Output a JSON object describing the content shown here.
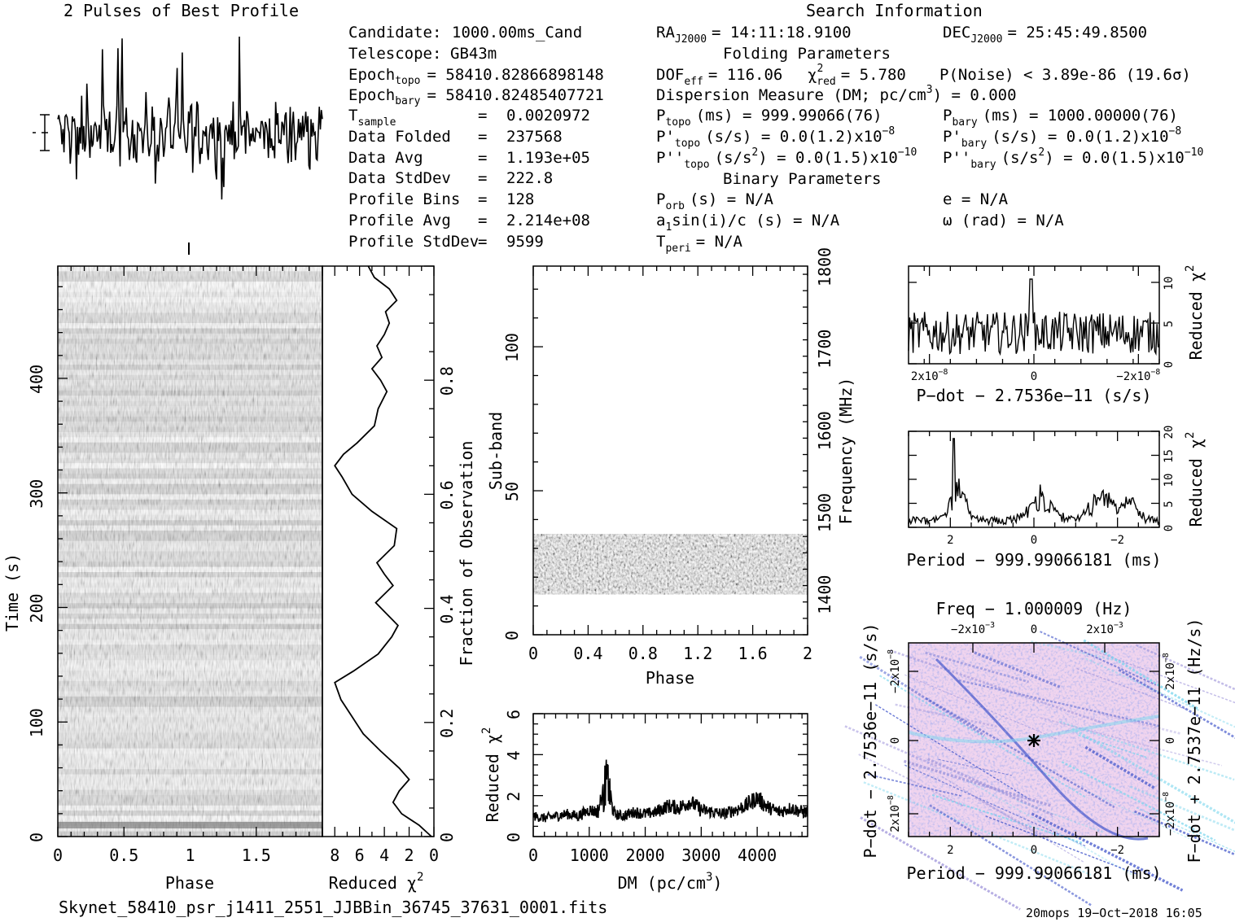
{
  "header": {
    "profile_title": "2 Pulses of Best Profile",
    "search_title": "Search Information",
    "folding_title": "Folding Parameters",
    "binary_title": "Binary Parameters"
  },
  "info": {
    "candidate": {
      "label": "Candidate:",
      "value": "1000.00ms_Cand"
    },
    "telescope": {
      "label": "Telescope:",
      "value": "GB43m"
    },
    "epoch_topo": {
      "label": "Epoch",
      "sub": "topo",
      "value": "= 58410.82866898148"
    },
    "epoch_bary": {
      "label": "Epoch",
      "sub": "bary",
      "value": "= 58410.82485407721"
    },
    "t_sample": {
      "label": "T",
      "sub": "sample",
      "value": "0.0020972"
    },
    "data_folded": {
      "label": "Data Folded",
      "value": "237568"
    },
    "data_avg": {
      "label": "Data Avg",
      "value": "1.193e+05"
    },
    "data_stddev": {
      "label": "Data StdDev",
      "value": "222.8"
    },
    "profile_bins": {
      "label": "Profile Bins",
      "value": "128"
    },
    "profile_avg": {
      "label": "Profile Avg",
      "value": "2.214e+08"
    },
    "profile_stddev": {
      "label": "Profile StdDev",
      "value": "9599"
    },
    "eq": "="
  },
  "search": {
    "ra": {
      "label": "RA",
      "sub": "J2000",
      "value": "= 14:11:18.9100"
    },
    "dec": {
      "label": "DEC",
      "sub": "J2000",
      "value": "= 25:45:49.8500"
    },
    "dof": {
      "label": "DOF",
      "sub": "eff",
      "value": "= 116.06"
    },
    "chi": {
      "label": "χ",
      "sup": "2",
      "sub": "red",
      "value": "= 5.780"
    },
    "pnoise": "P(Noise) < 3.89e-86  (19.6σ)",
    "dm_label": "Dispersion Measure (DM; pc/cm",
    "dm_sup": "3",
    "dm_value": ") = 0.000",
    "p_topo": {
      "label": "P",
      "sub": "topo",
      "value": "(ms) =  999.99066(76)"
    },
    "p_bary": {
      "label": "P",
      "sub": "bary",
      "value": "(ms) =  1000.00000(76)"
    },
    "pd_topo": {
      "label": "P'",
      "sub": "topo",
      "value": "(s/s) = 0.0(1.2)x10",
      "sup": "−8"
    },
    "pd_bary": {
      "label": "P'",
      "sub": "bary",
      "value": "(s/s) = 0.0(1.2)x10",
      "sup": "−8"
    },
    "pdd_topo": {
      "label": "P''",
      "sub": "topo",
      "value": "(s/s",
      "sup2": "2",
      "value2": ") = 0.0(1.5)x10",
      "sup": "−10"
    },
    "pdd_bary": {
      "label": "P''",
      "sub": "bary",
      "value": "(s/s",
      "sup2": "2",
      "value2": ") = 0.0(1.5)x10",
      "sup": "−10"
    },
    "p_orb": {
      "label": "P",
      "sub": "orb",
      "value": "(s) = N/A"
    },
    "a1": {
      "label": "a",
      "sub": "1",
      "value": "sin(i)/c (s) = N/A"
    },
    "t_peri": {
      "label": "T",
      "sub": "peri",
      "value": "= N/A"
    },
    "e": "e = N/A",
    "omega": "ω (rad) = N/A"
  },
  "footer": {
    "filename": "Skynet_58410_psr_j1411_2551_JJBBin_36745_37631_0001.fits",
    "stamp": "20mops 19−Oct−2018 16:05"
  },
  "colors": {
    "ink": "#000000",
    "grey_bg": "#c8c8c8",
    "pdot_map": "#f0d4ee",
    "pdot_map_dark": "#3a4fc8",
    "pdot_map_light": "#7fd8ee"
  },
  "chart_data": [
    {
      "name": "pulse-profile",
      "type": "line",
      "title": "2 Pulses of Best Profile",
      "x_range": [
        0,
        2
      ],
      "note": "noisy, no significant pulse"
    },
    {
      "name": "time-vs-phase",
      "type": "heatmap",
      "xlabel": "Phase",
      "ylabel": "Time (s)",
      "x_ticks": [
        "0",
        "0.5",
        "1",
        "1.5"
      ],
      "y_ticks": [
        "0",
        "100",
        "200",
        "300",
        "400"
      ],
      "xlim": [
        0,
        2
      ],
      "ylim": [
        0,
        498
      ]
    },
    {
      "name": "reduced-chi2-vs-time",
      "type": "line",
      "xlabel": "Reduced χ",
      "xlabel_sup": "2",
      "ylabel": "Fraction of Observation",
      "x_ticks": [
        "8",
        "6",
        "4",
        "2",
        "0"
      ],
      "y_ticks": [
        "0",
        "0.2",
        "0.4",
        "0.6",
        "0.8"
      ],
      "xlim": [
        9,
        0
      ],
      "ylim": [
        0,
        1
      ],
      "points": [
        [
          0.0,
          0.2
        ],
        [
          0.02,
          1.2
        ],
        [
          0.04,
          2.6
        ],
        [
          0.06,
          3.3
        ],
        [
          0.08,
          2.8
        ],
        [
          0.1,
          2.0
        ],
        [
          0.12,
          2.8
        ],
        [
          0.15,
          4.3
        ],
        [
          0.18,
          5.7
        ],
        [
          0.21,
          6.6
        ],
        [
          0.24,
          7.5
        ],
        [
          0.27,
          8.0
        ],
        [
          0.29,
          6.5
        ],
        [
          0.32,
          4.5
        ],
        [
          0.35,
          3.4
        ],
        [
          0.37,
          2.9
        ],
        [
          0.39,
          3.8
        ],
        [
          0.41,
          4.7
        ],
        [
          0.44,
          3.3
        ],
        [
          0.46,
          4.0
        ],
        [
          0.48,
          4.6
        ],
        [
          0.51,
          3.2
        ],
        [
          0.54,
          3.0
        ],
        [
          0.57,
          5.0
        ],
        [
          0.6,
          6.6
        ],
        [
          0.63,
          7.4
        ],
        [
          0.65,
          8.0
        ],
        [
          0.67,
          7.3
        ],
        [
          0.69,
          6.2
        ],
        [
          0.72,
          4.8
        ],
        [
          0.75,
          4.5
        ],
        [
          0.78,
          3.8
        ],
        [
          0.8,
          4.3
        ],
        [
          0.82,
          5.0
        ],
        [
          0.84,
          4.2
        ],
        [
          0.86,
          4.6
        ],
        [
          0.88,
          4.0
        ],
        [
          0.9,
          3.6
        ],
        [
          0.92,
          3.9
        ],
        [
          0.94,
          3.0
        ],
        [
          0.96,
          3.6
        ],
        [
          0.98,
          4.8
        ],
        [
          1.0,
          5.3
        ]
      ]
    },
    {
      "name": "subband-vs-phase",
      "type": "heatmap",
      "xlabel": "Phase",
      "ylabel": "Sub-band",
      "y2label": "Frequency (MHz)",
      "x_ticks": [
        "0",
        "0.4",
        "0.8",
        "1.2",
        "1.6",
        "2"
      ],
      "y_ticks": [
        "0",
        "50",
        "100"
      ],
      "y2_ticks": [
        "1400",
        "1500",
        "1600",
        "1700",
        "1800"
      ],
      "xlim": [
        0,
        2
      ],
      "ylim": [
        0,
        128
      ],
      "y2lim": [
        1350,
        1800
      ],
      "active_subbands": [
        14,
        35
      ]
    },
    {
      "name": "reduced-chi2-vs-dm",
      "type": "line",
      "xlabel": "DM (pc/cm",
      "xlabel_sup": "3",
      "xlabel_end": ")",
      "ylabel": "Reduced χ",
      "ylabel_sup": "2",
      "x_ticks": [
        "0",
        "1000",
        "2000",
        "3000",
        "4000"
      ],
      "y_ticks": [
        "0",
        "2",
        "4",
        "6"
      ],
      "xlim": [
        0,
        4900
      ],
      "ylim": [
        0,
        6
      ],
      "points": [
        [
          0,
          1.0
        ],
        [
          200,
          0.9
        ],
        [
          400,
          1.0
        ],
        [
          600,
          1.1
        ],
        [
          800,
          1.0
        ],
        [
          1000,
          1.3
        ],
        [
          1150,
          1.2
        ],
        [
          1250,
          2.2
        ],
        [
          1320,
          3.0
        ],
        [
          1380,
          1.8
        ],
        [
          1450,
          1.1
        ],
        [
          1600,
          1.0
        ],
        [
          1800,
          1.2
        ],
        [
          2000,
          1.1
        ],
        [
          2200,
          1.2
        ],
        [
          2400,
          1.5
        ],
        [
          2600,
          1.4
        ],
        [
          2800,
          1.7
        ],
        [
          3000,
          1.3
        ],
        [
          3200,
          1.2
        ],
        [
          3400,
          1.1
        ],
        [
          3600,
          1.3
        ],
        [
          3800,
          1.5
        ],
        [
          4000,
          1.9
        ],
        [
          4200,
          1.4
        ],
        [
          4400,
          1.2
        ],
        [
          4600,
          1.4
        ],
        [
          4800,
          1.2
        ]
      ]
    },
    {
      "name": "reduced-chi2-vs-pdot",
      "type": "line",
      "xlabel": "P−dot − 2.7536e−11 (s/s)",
      "ylabel": "Reduced χ",
      "ylabel_sup": "2",
      "x_ticks": [
        "2x10",
        "0",
        "−2x10"
      ],
      "x_tick_sup": "−8",
      "y_ticks": [
        "0",
        "5",
        "10"
      ],
      "xlim": [
        2.4e-08,
        -2.4e-08
      ],
      "ylim": [
        0,
        12
      ],
      "note": "peak near 0 of about 10.5"
    },
    {
      "name": "reduced-chi2-vs-period",
      "type": "line",
      "xlabel": "Period − 999.99066181 (ms)",
      "ylabel": "Reduced χ",
      "ylabel_sup": "2",
      "x_ticks": [
        "2",
        "0",
        "−2"
      ],
      "y_ticks": [
        "0",
        "5",
        "10",
        "15",
        "20"
      ],
      "xlim": [
        3,
        -3
      ],
      "ylim": [
        0,
        20
      ],
      "note": "peak near 2 of about 18.5"
    },
    {
      "name": "pdot-vs-period",
      "type": "heatmap",
      "title": "Freq − 1.000009 (Hz)",
      "xlabel": "Period − 999.99066181 (ms)",
      "ylabel": "P−dot − 2.7536e−11 (s/s)",
      "y2label": "F−dot + 2.7537e−11 (Hz/s)",
      "x_ticks": [
        "2",
        "0",
        "−2"
      ],
      "top_ticks": [
        "−2x10",
        "0",
        "2x10"
      ],
      "top_tick_sup": "−3",
      "y_ticks": [
        "−2x10",
        "0",
        "2x10"
      ],
      "y_tick_sup": "−8",
      "y2_ticks": [
        "2x10",
        "0",
        "−2x10"
      ],
      "y2_tick_sup": "−8"
    }
  ]
}
